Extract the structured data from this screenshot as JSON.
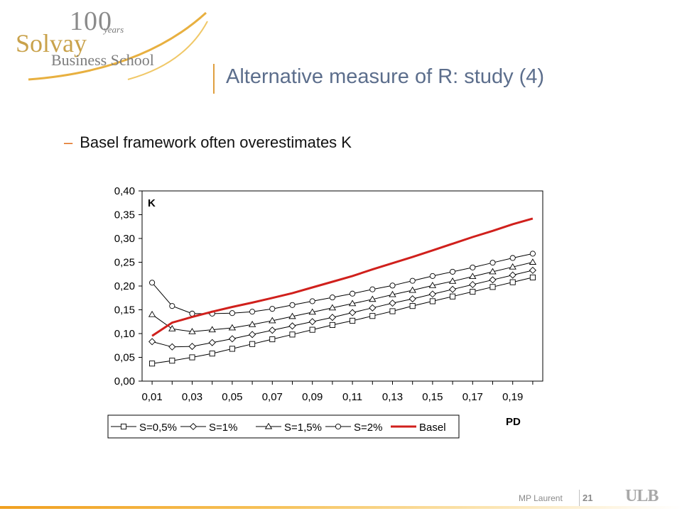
{
  "logo": {
    "hundred": "100",
    "years": "years",
    "solvay": "Solvay",
    "business_school": "Business School"
  },
  "slide": {
    "title": "Alternative measure of R: study (4)",
    "bullet_dash": "–",
    "bullet": "Basel framework often overestimates K"
  },
  "footer": {
    "author": "MP Laurent",
    "page": "21",
    "ulb": "ULB"
  },
  "colors": {
    "basel": "#d0201c",
    "series": "#000000",
    "accent": "#e06d1a",
    "title": "#5c6e8c"
  },
  "chart_data": {
    "type": "line",
    "ylabel": "K",
    "xlabel": "PD",
    "ylim": [
      0,
      0.4
    ],
    "yticks": [
      "0,00",
      "0,05",
      "0,10",
      "0,15",
      "0,20",
      "0,25",
      "0,30",
      "0,35",
      "0,40"
    ],
    "xticks": [
      "0,01",
      "0,03",
      "0,05",
      "0,07",
      "0,09",
      "0,11",
      "0,13",
      "0,15",
      "0,17",
      "0,19"
    ],
    "x": [
      0.01,
      0.02,
      0.03,
      0.04,
      0.05,
      0.06,
      0.07,
      0.08,
      0.09,
      0.1,
      0.11,
      0.12,
      0.13,
      0.14,
      0.15,
      0.16,
      0.17,
      0.18,
      0.19,
      0.2
    ],
    "grid": false,
    "legend_position": "bottom",
    "series": [
      {
        "name": "S=0,5%",
        "marker": "square",
        "color": "#000000",
        "values": [
          0.037,
          0.043,
          0.05,
          0.058,
          0.068,
          0.078,
          0.088,
          0.098,
          0.108,
          0.118,
          0.127,
          0.137,
          0.147,
          0.158,
          0.168,
          0.178,
          0.188,
          0.198,
          0.208,
          0.218
        ]
      },
      {
        "name": "S=1%",
        "marker": "diamond",
        "color": "#000000",
        "values": [
          0.083,
          0.072,
          0.073,
          0.081,
          0.089,
          0.098,
          0.107,
          0.116,
          0.125,
          0.134,
          0.144,
          0.154,
          0.164,
          0.173,
          0.183,
          0.193,
          0.203,
          0.213,
          0.223,
          0.233
        ]
      },
      {
        "name": "S=1,5%",
        "marker": "triangle",
        "color": "#000000",
        "values": [
          0.14,
          0.11,
          0.104,
          0.108,
          0.112,
          0.119,
          0.127,
          0.136,
          0.145,
          0.154,
          0.163,
          0.172,
          0.182,
          0.191,
          0.201,
          0.21,
          0.22,
          0.23,
          0.24,
          0.25
        ]
      },
      {
        "name": "S=2%",
        "marker": "circle",
        "color": "#000000",
        "values": [
          0.207,
          0.158,
          0.142,
          0.142,
          0.143,
          0.146,
          0.152,
          0.16,
          0.168,
          0.176,
          0.184,
          0.193,
          0.201,
          0.211,
          0.221,
          0.23,
          0.239,
          0.249,
          0.259,
          0.268
        ]
      },
      {
        "name": "Basel",
        "marker": "none",
        "color": "#d0201c",
        "values": [
          0.095,
          0.123,
          0.135,
          0.146,
          0.156,
          0.165,
          0.175,
          0.185,
          0.197,
          0.209,
          0.221,
          0.235,
          0.248,
          0.261,
          0.275,
          0.289,
          0.303,
          0.316,
          0.33,
          0.342
        ]
      }
    ]
  }
}
